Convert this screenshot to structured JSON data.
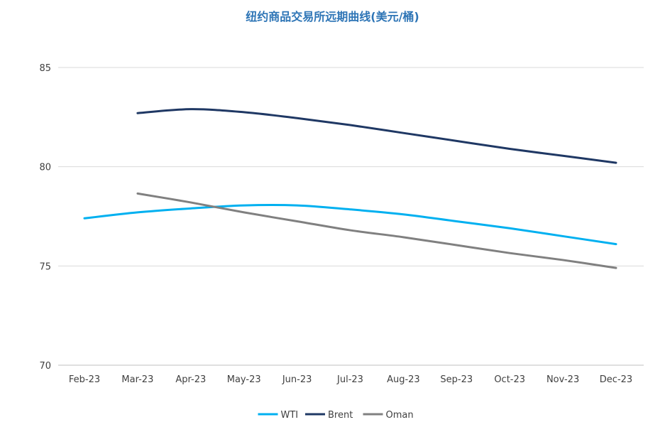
{
  "chart_data": {
    "type": "line",
    "title": "纽约商品交易所远期曲线(美元/桶)",
    "xlabel": "",
    "ylabel": "",
    "categories": [
      "Feb-23",
      "Mar-23",
      "Apr-23",
      "May-23",
      "Jun-23",
      "Jul-23",
      "Aug-23",
      "Sep-23",
      "Oct-23",
      "Nov-23",
      "Dec-23"
    ],
    "ylim": [
      70,
      85
    ],
    "yticks": [
      70,
      75,
      80,
      85
    ],
    "grid": true,
    "legend_position": "bottom",
    "series": [
      {
        "name": "WTI",
        "color": "#00b0f0",
        "values": [
          77.4,
          77.7,
          77.9,
          78.05,
          78.05,
          77.85,
          77.6,
          77.25,
          76.9,
          76.5,
          76.1
        ]
      },
      {
        "name": "Brent",
        "color": "#1f3864",
        "values": [
          null,
          82.7,
          82.9,
          82.75,
          82.45,
          82.1,
          81.7,
          81.3,
          80.9,
          80.55,
          80.2
        ]
      },
      {
        "name": "Oman",
        "color": "#808080",
        "values": [
          null,
          78.65,
          78.2,
          77.7,
          77.25,
          76.8,
          76.45,
          76.05,
          75.65,
          75.3,
          74.9
        ]
      }
    ]
  }
}
